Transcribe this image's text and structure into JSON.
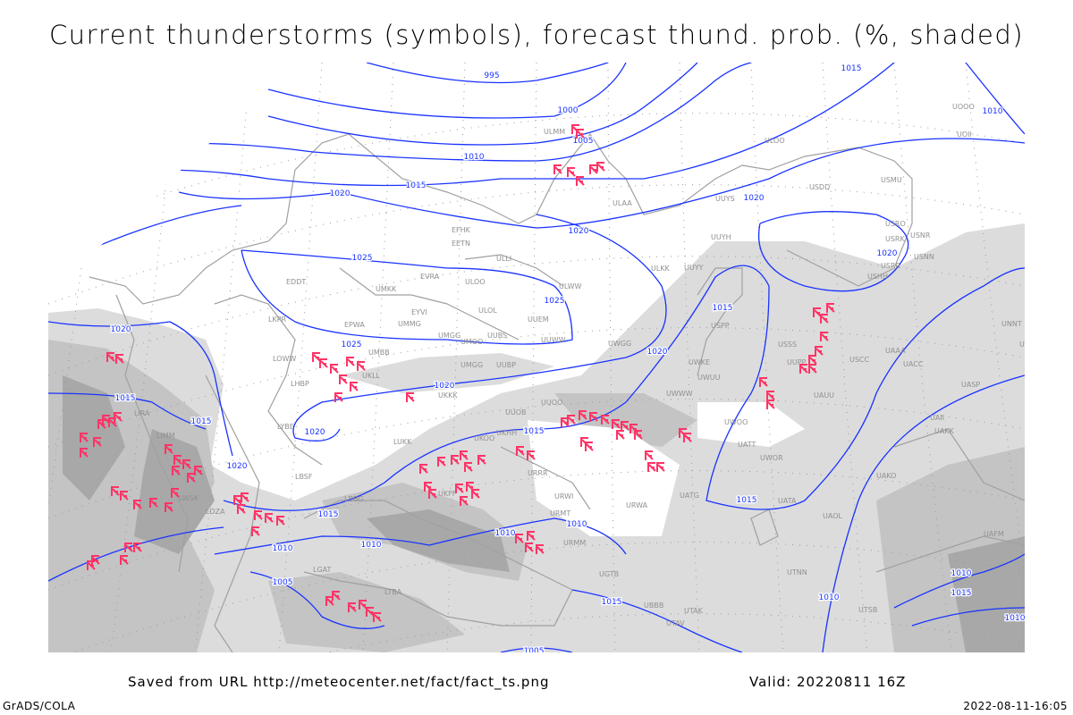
{
  "title": "Current thunderstorms (symbols), forecast thund. prob. (%, shaded)",
  "footer": {
    "source": "Saved from URL http://meteocenter.net/fact/fact_ts.png",
    "valid": "Valid: 20220811 16Z",
    "software": "GrADS/COLA",
    "timestamp": "2022-08-11-16:05"
  },
  "colors": {
    "isobar": "#1a33ff",
    "coastline": "#a0a0a0",
    "thunderstorm_symbol": "#ff3366",
    "shade_light": "#dcdcdc",
    "shade_mid": "#c4c4c4",
    "shade_dark": "#a8a8a8"
  },
  "legend": {
    "symbol": "thunderstorm-icon",
    "shading": "thunderstorm probability (%)"
  },
  "isobar_labels": [
    "995",
    "1000",
    "1005",
    "1010",
    "1015",
    "1020",
    "1020",
    "1025",
    "1025",
    "1020",
    "1025",
    "1015",
    "1015",
    "1020",
    "1020",
    "1020",
    "1015",
    "1020",
    "1015",
    "1020",
    "1020",
    "1015",
    "1010",
    "1015",
    "1015",
    "1010",
    "1010",
    "1010",
    "1010",
    "1005",
    "1015",
    "1010",
    "1005",
    "1010",
    "1015",
    "1010"
  ],
  "stations": [
    "EFHK",
    "EETN",
    "ULLI",
    "EVRA",
    "ULOO",
    "UMKK",
    "EDDT",
    "EPWA",
    "EYVI",
    "ULOL",
    "UUEM",
    "UMMG",
    "UMGG",
    "UMBB",
    "UMOO",
    "UUBS",
    "UUWW",
    "UWGG",
    "ULWW",
    "ULKK",
    "UUYY",
    "UUYH",
    "UUYS",
    "ULAA",
    "ULOO",
    "USDD",
    "USMU",
    "USRO",
    "USRK",
    "USNR",
    "USRR",
    "USNN",
    "USHH",
    "UOOO",
    "UOII",
    "LKPR",
    "LOWW",
    "LHBP",
    "LYBE",
    "LBSF",
    "UKLL",
    "UKKK",
    "UKHH",
    "UUOB",
    "UUOO",
    "UUBP",
    "UMGG",
    "UWOO",
    "UWKE",
    "UWUU",
    "UWWW",
    "USSS",
    "USPP",
    "UUPP",
    "USCC",
    "UACC",
    "UAUU",
    "UATT",
    "UWOR",
    "UAAA",
    "UATG",
    "URWA",
    "URWI",
    "URRR",
    "URMM",
    "URMT",
    "UGTB",
    "UBBB",
    "UTAK",
    "UTAV",
    "UTSB",
    "UTNN",
    "UAOL",
    "UATA",
    "UAKO",
    "UAKK",
    "UASP",
    "UNBB",
    "UNNT",
    "UAII",
    "UAFM",
    "UKFF",
    "UKOO",
    "LUKK",
    "LBBG",
    "LTBA",
    "LGAT",
    "LIRA",
    "LIMM",
    "LDZA",
    "LWSK",
    "ULMM"
  ]
}
